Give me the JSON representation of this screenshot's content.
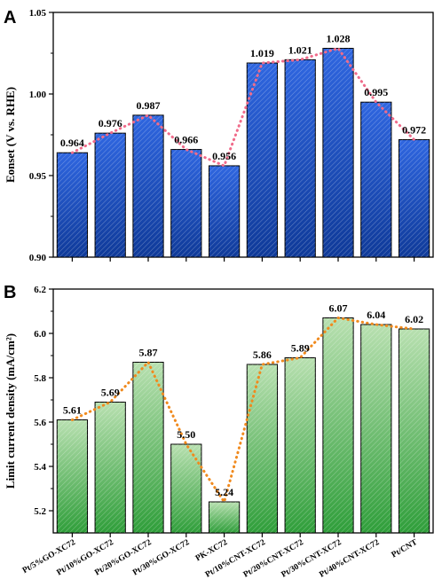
{
  "chart_data": [
    {
      "type": "bar",
      "panel_letter": "A",
      "title": "",
      "xlabel": "",
      "ylabel": "Eonset (V vs. RHE)",
      "ylim": [
        0.9,
        1.05
      ],
      "yticks": [
        "0.90",
        "0.95",
        "1.00",
        "1.05"
      ],
      "categories": [
        "Pt/5%GO-XC72",
        "Pt/10%GO-XC72",
        "Pt/20%GO-XC72",
        "Pt/30%GO-XC72",
        "PK-XC72",
        "Pt/10%CNT-XC72",
        "Pt/20%CNT-XC72",
        "Pt/30%CNT-XC72",
        "Pt/40%CNT-XC72",
        "Pt/CNT"
      ],
      "values": [
        0.964,
        0.976,
        0.987,
        0.966,
        0.956,
        1.019,
        1.021,
        1.028,
        0.995,
        0.972
      ],
      "value_labels": [
        "0.964",
        "0.976",
        "0.987",
        "0.966",
        "0.956",
        "1.019",
        "1.021",
        "1.028",
        "0.995",
        "0.972"
      ],
      "bar_color": "#1f4fc1",
      "trend_color": "#f06b8a",
      "grid": false
    },
    {
      "type": "bar",
      "panel_letter": "B",
      "title": "",
      "xlabel": "",
      "ylabel": "Limit current density (mA/cm²)",
      "ylim": [
        5.1,
        6.2
      ],
      "yticks": [
        "5.2",
        "5.4",
        "5.6",
        "5.8",
        "6.0",
        "6.2"
      ],
      "categories": [
        "Pt/5%GO-XC72",
        "Pt/10%GO-XC72",
        "Pt/20%GO-XC72",
        "Pt/30%GO-XC72",
        "PK-XC72",
        "Pt/10%CNT-XC72",
        "Pt/20%CNT-XC72",
        "Pt/30%CNT-XC72",
        "Pt/40%CNT-XC72",
        "Pt/CNT"
      ],
      "values": [
        5.61,
        5.69,
        5.87,
        5.5,
        5.24,
        5.86,
        5.89,
        6.07,
        6.04,
        6.02
      ],
      "value_labels": [
        "5.61",
        "5.69",
        "5.87",
        "5.50",
        "5.24",
        "5.86",
        "5.89",
        "6.07",
        "6.04",
        "6.02"
      ],
      "bar_color": "#5fb85a",
      "trend_color": "#f08a1e",
      "grid": false
    }
  ]
}
